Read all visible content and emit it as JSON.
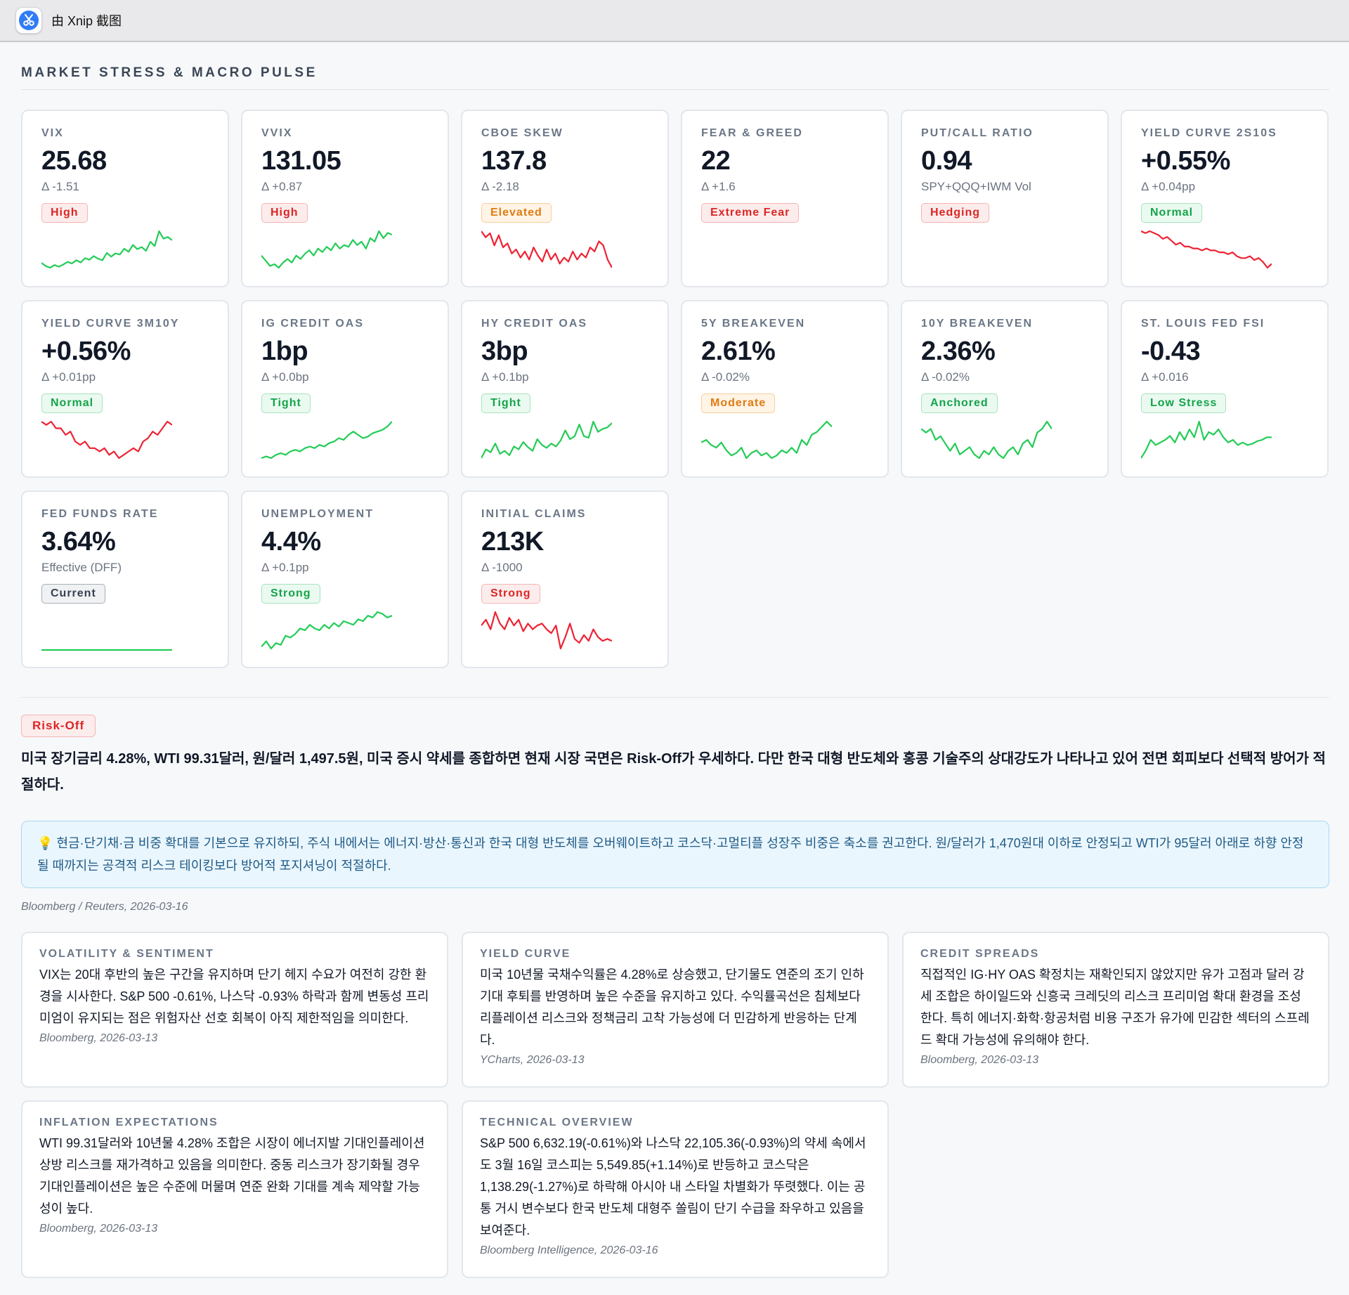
{
  "window": {
    "title": "由 Xnip 截图",
    "icon": "scissors-icon"
  },
  "dashboard": {
    "title": "MARKET STRESS & MACRO PULSE"
  },
  "colors": {
    "up": "#22cc55",
    "down": "#ee2233",
    "flat": "#22cc55"
  },
  "kpis": [
    {
      "label": "VIX",
      "value": "25.68",
      "sub": "Δ -1.51",
      "badge": "High",
      "tone": "red",
      "trend": "up",
      "spark": [
        21.2,
        20.6,
        20.3,
        20.8,
        20.5,
        20.9,
        21.4,
        21.1,
        21.7,
        21.3,
        22.1,
        21.8,
        22.5,
        22.0,
        21.7,
        23.1,
        22.4,
        23.0,
        22.8,
        23.9,
        23.3,
        24.6,
        23.8,
        24.2,
        23.5,
        25.2,
        24.4,
        27.2,
        25.8,
        26.1,
        25.5
      ]
    },
    {
      "label": "VVIX",
      "value": "131.05",
      "sub": "Δ +0.87",
      "badge": "High",
      "tone": "red",
      "trend": "up",
      "spark": [
        118,
        115,
        112,
        113,
        111,
        114,
        116,
        114,
        118,
        116,
        119,
        121,
        118,
        122,
        120,
        123,
        121,
        125,
        122,
        124,
        123,
        127,
        124,
        126,
        122,
        128,
        126,
        132,
        128,
        131,
        130
      ]
    },
    {
      "label": "CBOE SKEW",
      "value": "137.8",
      "sub": "Δ -2.18",
      "badge": "Elevated",
      "tone": "orange",
      "trend": "down",
      "spark": [
        146,
        143,
        145,
        139,
        144,
        138,
        140,
        135,
        137,
        133,
        136,
        132,
        138,
        134,
        131,
        137,
        132,
        135,
        130,
        133,
        131,
        136,
        132,
        135,
        133,
        138,
        136,
        141,
        139,
        132,
        128
      ]
    },
    {
      "label": "FEAR & GREED",
      "value": "22",
      "sub": "Δ +1.6",
      "badge": "Extreme Fear",
      "tone": "red",
      "trend": "none",
      "spark": []
    },
    {
      "label": "PUT/CALL RATIO",
      "value": "0.94",
      "sub": "SPY+QQQ+IWM Vol",
      "badge": "Hedging",
      "tone": "red",
      "trend": "none",
      "spark": []
    },
    {
      "label": "YIELD CURVE 2S10S",
      "value": "+0.55%",
      "sub": "Δ +0.04pp",
      "badge": "Normal",
      "tone": "green",
      "trend": "down",
      "spark": [
        0.72,
        0.71,
        0.72,
        0.71,
        0.7,
        0.68,
        0.69,
        0.67,
        0.65,
        0.66,
        0.64,
        0.64,
        0.63,
        0.63,
        0.62,
        0.63,
        0.62,
        0.62,
        0.61,
        0.61,
        0.6,
        0.61,
        0.59,
        0.58,
        0.58,
        0.59,
        0.57,
        0.58,
        0.56,
        0.53,
        0.55
      ]
    }
  ],
  "kpis_row2": [
    {
      "label": "YIELD CURVE 3M10Y",
      "value": "+0.56%",
      "sub": "Δ +0.01pp",
      "badge": "Normal",
      "tone": "green",
      "trend": "down",
      "spark": [
        0.62,
        0.61,
        0.62,
        0.6,
        0.6,
        0.58,
        0.59,
        0.56,
        0.55,
        0.56,
        0.54,
        0.54,
        0.53,
        0.54,
        0.52,
        0.53,
        0.51,
        0.52,
        0.53,
        0.54,
        0.53,
        0.56,
        0.57,
        0.59,
        0.58,
        0.6,
        0.62,
        0.61
      ]
    },
    {
      "label": "IG CREDIT OAS",
      "value": "1bp",
      "sub": "Δ +0.0bp",
      "badge": "Tight",
      "tone": "green",
      "trend": "up",
      "spark": [
        0.8,
        0.81,
        0.8,
        0.82,
        0.83,
        0.82,
        0.84,
        0.85,
        0.84,
        0.86,
        0.87,
        0.86,
        0.88,
        0.87,
        0.89,
        0.9,
        0.92,
        0.91,
        0.94,
        0.96,
        0.94,
        0.92,
        0.93,
        0.95,
        0.96,
        0.97,
        0.99,
        1.02
      ]
    },
    {
      "label": "HY CREDIT OAS",
      "value": "3bp",
      "sub": "Δ +0.1bp",
      "badge": "Tight",
      "tone": "green",
      "trend": "up",
      "spark": [
        2.6,
        2.72,
        2.68,
        2.8,
        2.66,
        2.7,
        2.64,
        2.76,
        2.72,
        2.82,
        2.75,
        2.7,
        2.86,
        2.78,
        2.74,
        2.8,
        2.76,
        2.84,
        2.98,
        2.86,
        2.9,
        3.06,
        2.9,
        2.88,
        3.1,
        2.96,
        3.0,
        3.02,
        3.08
      ]
    },
    {
      "label": "5Y BREAKEVEN",
      "value": "2.61%",
      "sub": "Δ -0.02%",
      "badge": "Moderate",
      "tone": "orange",
      "trend": "up",
      "spark": [
        2.52,
        2.53,
        2.51,
        2.5,
        2.52,
        2.49,
        2.47,
        2.48,
        2.5,
        2.46,
        2.48,
        2.49,
        2.47,
        2.48,
        2.46,
        2.47,
        2.49,
        2.48,
        2.5,
        2.48,
        2.53,
        2.51,
        2.55,
        2.56,
        2.58,
        2.6,
        2.58
      ]
    },
    {
      "label": "10Y BREAKEVEN",
      "value": "2.36%",
      "sub": "Δ -0.02%",
      "badge": "Anchored",
      "tone": "green",
      "trend": "up",
      "spark": [
        2.34,
        2.33,
        2.34,
        2.31,
        2.32,
        2.3,
        2.28,
        2.3,
        2.27,
        2.28,
        2.29,
        2.27,
        2.26,
        2.28,
        2.27,
        2.29,
        2.27,
        2.26,
        2.28,
        2.29,
        2.27,
        2.3,
        2.31,
        2.29,
        2.33,
        2.34,
        2.36,
        2.34
      ]
    },
    {
      "label": "ST. LOUIS FED FSI",
      "value": "-0.43",
      "sub": "Δ +0.016",
      "badge": "Low Stress",
      "tone": "green",
      "trend": "up",
      "spark": [
        -0.72,
        -0.66,
        -0.58,
        -0.62,
        -0.6,
        -0.58,
        -0.55,
        -0.6,
        -0.52,
        -0.58,
        -0.5,
        -0.56,
        -0.44,
        -0.58,
        -0.52,
        -0.54,
        -0.5,
        -0.56,
        -0.6,
        -0.58,
        -0.62,
        -0.6,
        -0.62,
        -0.61,
        -0.59,
        -0.58,
        -0.56,
        -0.56
      ]
    }
  ],
  "kpis_row3": [
    {
      "label": "FED FUNDS RATE",
      "value": "3.64%",
      "sub": "Effective (DFF)",
      "badge": "Current",
      "tone": "gray",
      "trend": "flat",
      "spark": [
        3.64,
        3.64,
        3.64,
        3.64,
        3.64,
        3.64,
        3.64,
        3.64,
        3.64,
        3.64
      ]
    },
    {
      "label": "UNEMPLOYMENT",
      "value": "4.4%",
      "sub": "Δ +0.1pp",
      "badge": "Strong",
      "tone": "green",
      "trend": "up",
      "spark": [
        4.0,
        4.06,
        3.98,
        4.04,
        4.02,
        4.12,
        4.1,
        4.14,
        4.2,
        4.18,
        4.24,
        4.2,
        4.18,
        4.24,
        4.2,
        4.26,
        4.22,
        4.28,
        4.26,
        4.24,
        4.3,
        4.28,
        4.34,
        4.32,
        4.38,
        4.36,
        4.32,
        4.34
      ]
    },
    {
      "label": "INITIAL CLAIMS",
      "value": "213K",
      "sub": "Δ -1000",
      "badge": "Strong",
      "tone": "red",
      "trend": "down",
      "spark": [
        226,
        229,
        224,
        233,
        227,
        224,
        230,
        226,
        229,
        223,
        227,
        224,
        226,
        227,
        224,
        222,
        226,
        214,
        220,
        227,
        219,
        217,
        221,
        218,
        224,
        220,
        218,
        219,
        218
      ]
    }
  ],
  "regime": {
    "badge": "Risk-Off",
    "summary": "미국 장기금리 4.28%, WTI 99.31달러, 원/달러 1,497.5원, 미국 증시 약세를 종합하면 현재 시장 국면은 Risk-Off가 우세하다. 다만 한국 대형 반도체와 홍콩 기술주의 상대강도가 나타나고 있어 전면 회피보다 선택적 방어가 적절하다."
  },
  "callout": {
    "icon": "lightbulb-icon",
    "text": "현금·단기채·금 비중 확대를 기본으로 유지하되, 주식 내에서는 에너지·방산·통신과 한국 대형 반도체를 오버웨이트하고 코스닥·고멀티플 성장주 비중은 축소를 권고한다. 원/달러가 1,470원대 이하로 안정되고 WTI가 95달러 아래로 하향 안정될 때까지는 공격적 리스크 테이킹보다 방어적 포지셔닝이 적절하다."
  },
  "source": "Bloomberg / Reuters, 2026-03-16",
  "insights": [
    {
      "title": "VOLATILITY & SENTIMENT",
      "body": "VIX는 20대 후반의 높은 구간을 유지하며 단기 헤지 수요가 여전히 강한 환경을 시사한다. S&P 500 -0.61%, 나스닥 -0.93% 하락과 함께 변동성 프리미엄이 유지되는 점은 위험자산 선호 회복이 아직 제한적임을 의미한다.",
      "source": "Bloomberg, 2026-03-13"
    },
    {
      "title": "YIELD CURVE",
      "body": "미국 10년물 국채수익률은 4.28%로 상승했고, 단기물도 연준의 조기 인하 기대 후퇴를 반영하며 높은 수준을 유지하고 있다. 수익률곡선은 침체보다 리플레이션 리스크와 정책금리 고착 가능성에 더 민감하게 반응하는 단계다.",
      "source": "YCharts, 2026-03-13"
    },
    {
      "title": "CREDIT SPREADS",
      "body": "직접적인 IG·HY OAS 확정치는 재확인되지 않았지만 유가 고점과 달러 강세 조합은 하이일드와 신흥국 크레딧의 리스크 프리미엄 확대 환경을 조성한다. 특히 에너지·화학·항공처럼 비용 구조가 유가에 민감한 섹터의 스프레드 확대 가능성에 유의해야 한다.",
      "source": "Bloomberg, 2026-03-13"
    }
  ],
  "insights_row2": [
    {
      "title": "INFLATION EXPECTATIONS",
      "body": "WTI 99.31달러와 10년물 4.28% 조합은 시장이 에너지발 기대인플레이션 상방 리스크를 재가격하고 있음을 의미한다. 중동 리스크가 장기화될 경우 기대인플레이션은 높은 수준에 머물며 연준 완화 기대를 계속 제약할 가능성이 높다.",
      "source": "Bloomberg, 2026-03-13"
    },
    {
      "title": "TECHNICAL OVERVIEW",
      "body": "S&P 500 6,632.19(-0.61%)와 나스닥 22,105.36(-0.93%)의 약세 속에서도 3월 16일 코스피는 5,549.85(+1.14%)로 반등하고 코스닥은 1,138.29(-1.27%)로 하락해 아시아 내 스타일 차별화가 뚜렷했다. 이는 공통 거시 변수보다 한국 반도체 대형주 쏠림이 단기 수급을 좌우하고 있음을 보여준다.",
      "source": "Bloomberg Intelligence, 2026-03-16"
    }
  ]
}
